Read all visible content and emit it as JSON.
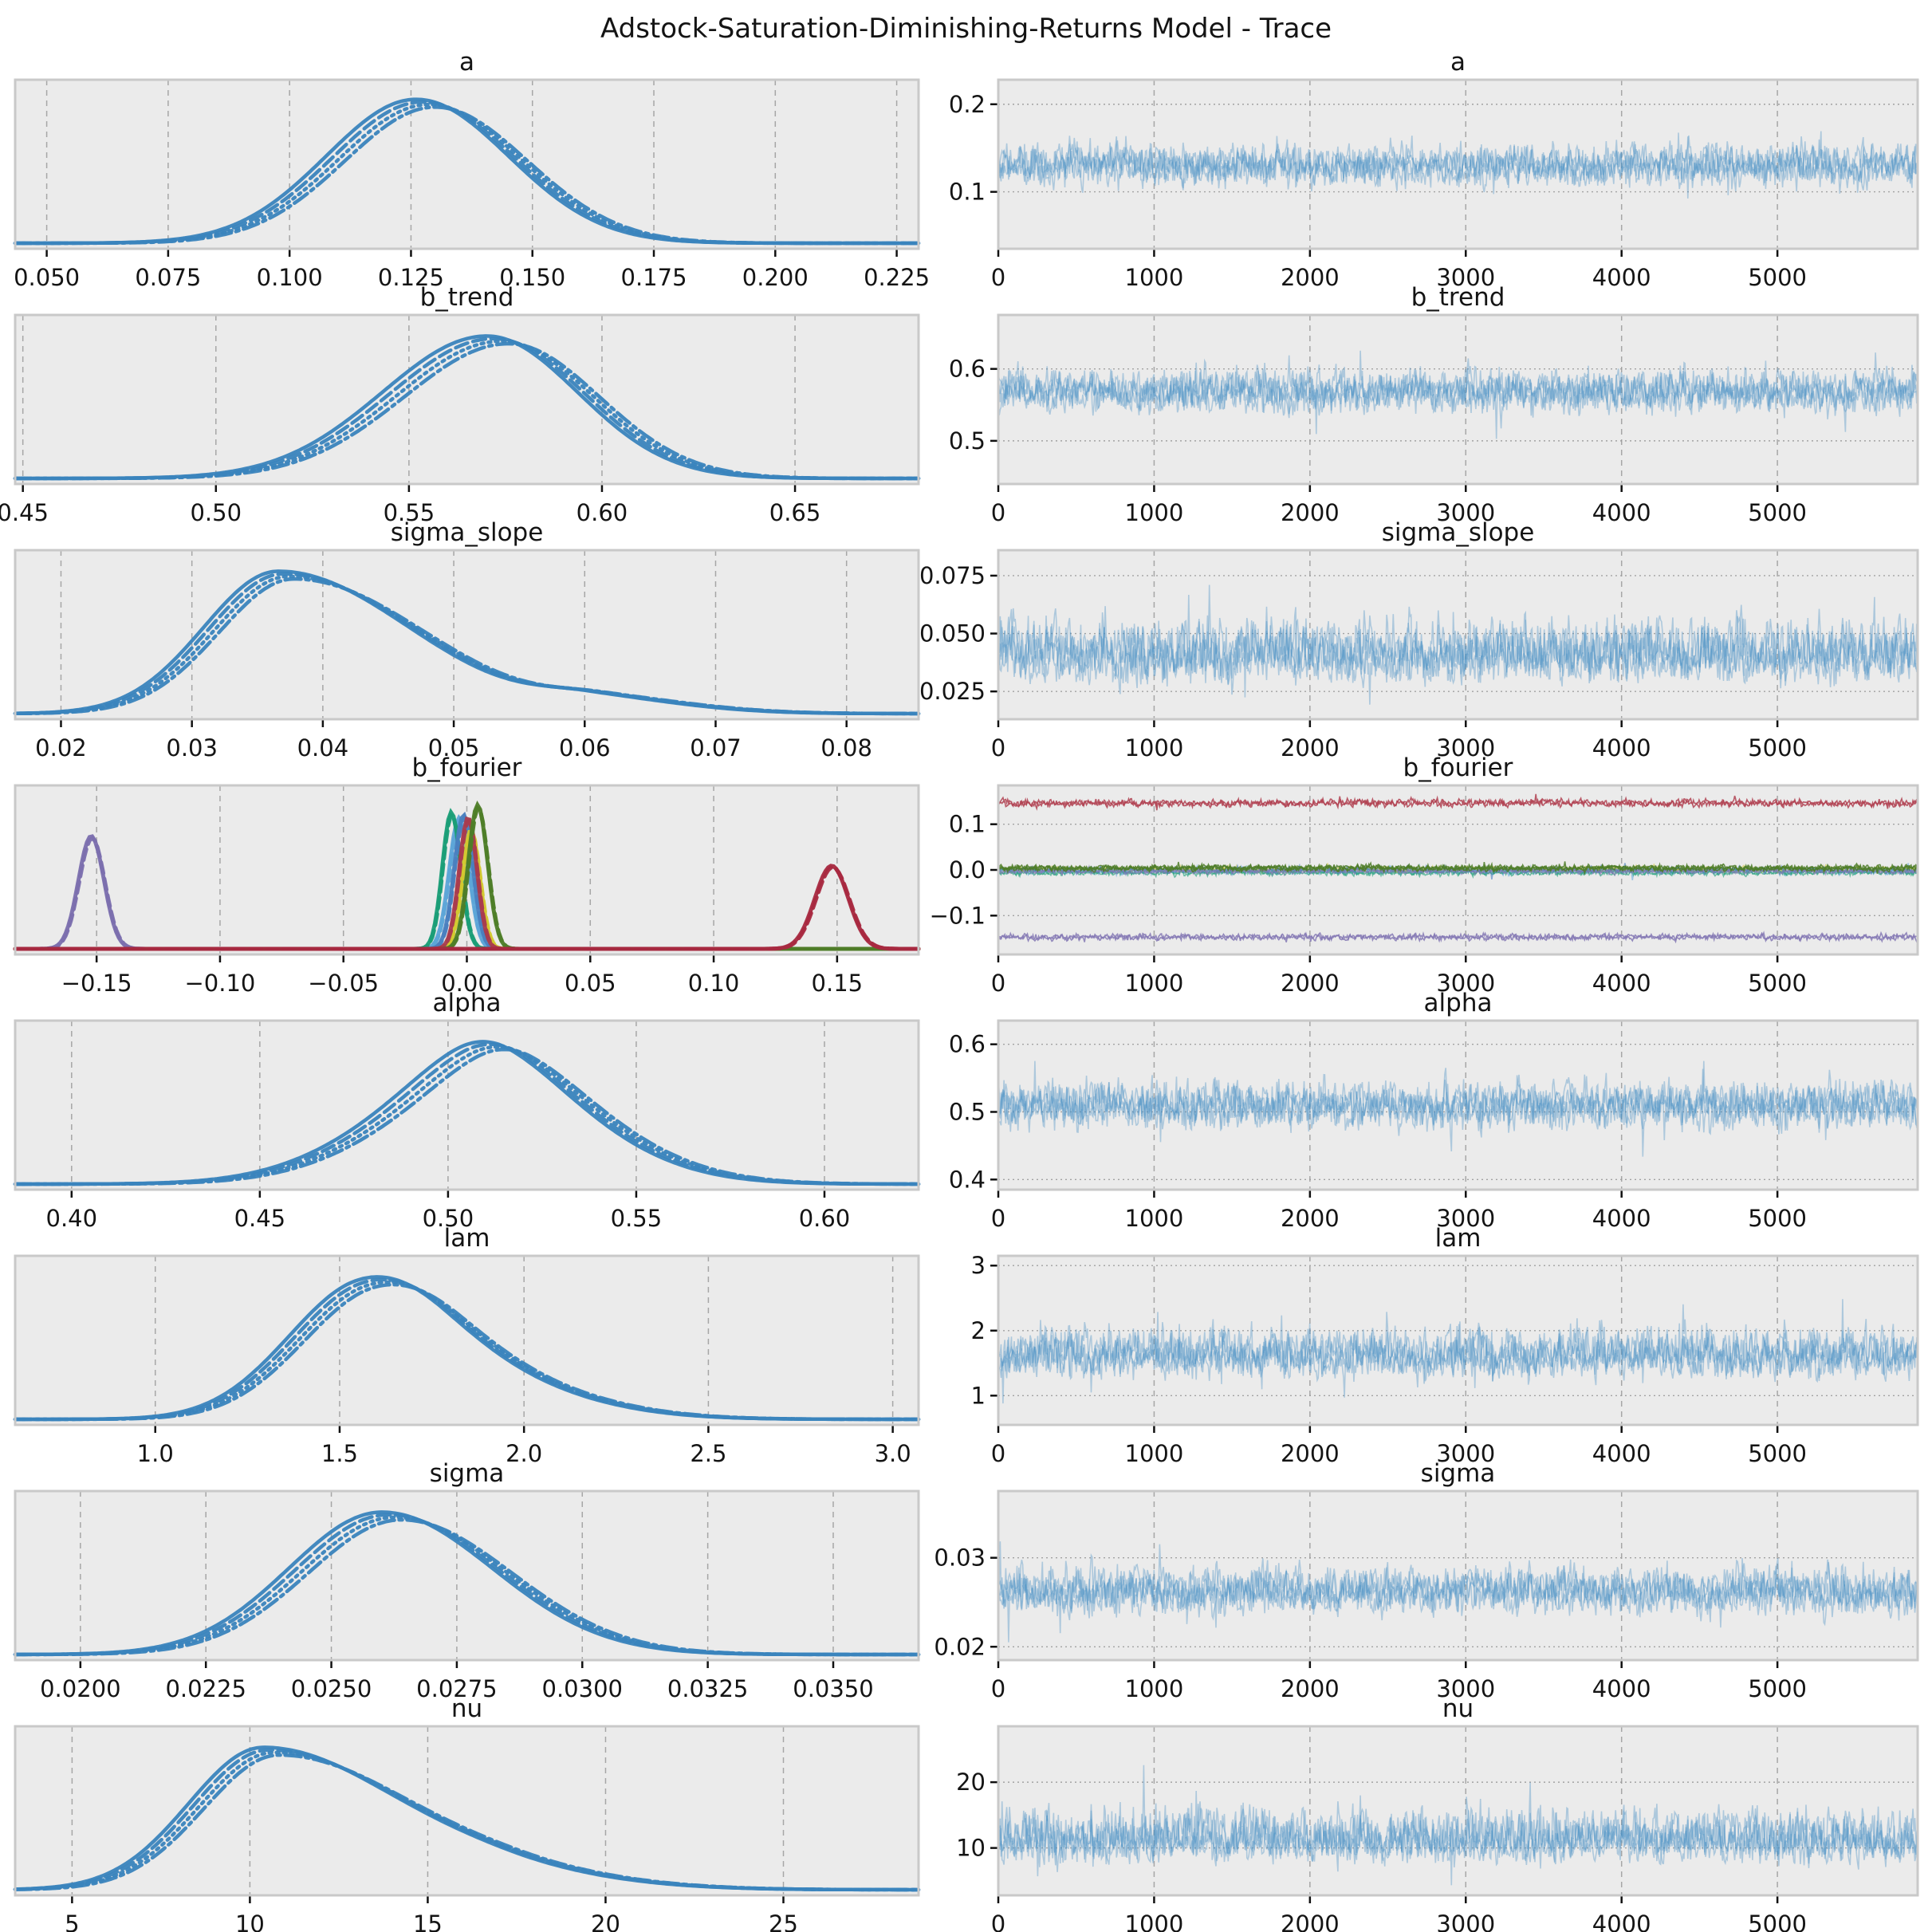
{
  "title": "Adstock-Saturation-Diminishing-Returns Model - Trace",
  "palette": {
    "chain_blue": "#3a84bd",
    "trace_blue": "#4a90c4",
    "background_axes": "#ebebeb",
    "frame": "#c9c9c9",
    "grid": "#9b9b9b",
    "tick_text": "#141414",
    "fourier_purple": "#7b6fae",
    "fourier_teal": "#1a9e77",
    "fourier_lightblue": "#5da5d8",
    "fourier_blue": "#4a7fbf",
    "fourier_crimson": "#a93c4e",
    "fourier_yellow": "#d3c92f",
    "fourier_olive": "#4e7d28",
    "fourier_darkcrimson": "#a82940"
  },
  "chart_data": {
    "type": "line",
    "description": "ArviZ-style MCMC trace plot grid: left column = posterior KDE per parameter (4 chains, linestyles solid/dashed/dotted/dashdot), right column = sampled values vs draw index (0..5900).",
    "trace_x": {
      "tick_labels": [
        "0",
        "1000",
        "2000",
        "3000",
        "4000",
        "5000"
      ],
      "tick_values": [
        0,
        1000,
        2000,
        3000,
        4000,
        5000
      ],
      "xmax": 5900
    },
    "rows": [
      {
        "param": "a",
        "kde": {
          "xlim": [
            0.0435,
            0.2295
          ],
          "tick_values": [
            0.05,
            0.075,
            0.1,
            0.125,
            0.15,
            0.175,
            0.2,
            0.225
          ],
          "tick_labels": [
            "0.050",
            "0.075",
            "0.100",
            "0.125",
            "0.150",
            "0.175",
            "0.200",
            "0.225"
          ],
          "components": [
            {
              "color": "#3a84bd",
              "chains": 4,
              "height": 0.97,
              "gauss": [
                {
                  "m": 0.128,
                  "sl": 0.0185,
                  "sr": 0.019,
                  "w": 1
                }
              ]
            }
          ]
        },
        "trace": {
          "ylim": [
            0.035,
            0.228
          ],
          "ytick_values": [
            0.1,
            0.2
          ],
          "ytick_labels": [
            "0.1",
            "0.2"
          ],
          "bands": [
            {
              "color": "#4a90c4",
              "chains": 4,
              "alpha": 0.38,
              "center": 0.13,
              "spread": 0.021,
              "skew": 0
            }
          ]
        }
      },
      {
        "param": "b_trend",
        "kde": {
          "xlim": [
            0.448,
            0.682
          ],
          "tick_values": [
            0.45,
            0.5,
            0.55,
            0.6,
            0.65
          ],
          "tick_labels": [
            "0.45",
            "0.50",
            "0.55",
            "0.60",
            "0.65"
          ],
          "components": [
            {
              "color": "#3a84bd",
              "chains": 4,
              "height": 0.96,
              "gauss": [
                {
                  "m": 0.573,
                  "sl": 0.027,
                  "sr": 0.0235,
                  "w": 1
                }
              ]
            }
          ]
        },
        "trace": {
          "ylim": [
            0.44,
            0.675
          ],
          "ytick_values": [
            0.5,
            0.6
          ],
          "ytick_labels": [
            "0.5",
            "0.6"
          ],
          "bands": [
            {
              "color": "#4a90c4",
              "chains": 4,
              "alpha": 0.38,
              "center": 0.569,
              "spread": 0.026,
              "skew": 0.05
            }
          ]
        }
      },
      {
        "param": "sigma_slope",
        "kde": {
          "xlim": [
            0.0165,
            0.0855
          ],
          "tick_values": [
            0.02,
            0.03,
            0.04,
            0.05,
            0.06,
            0.07,
            0.08
          ],
          "tick_labels": [
            "0.02",
            "0.03",
            "0.04",
            "0.05",
            "0.06",
            "0.07",
            "0.08"
          ],
          "components": [
            {
              "color": "#3a84bd",
              "chains": 4,
              "height": 0.96,
              "gauss": [
                {
                  "m": 0.0372,
                  "sl": 0.0057,
                  "sr": 0.01,
                  "w": 1
                },
                {
                  "m": 0.061,
                  "sl": 0.004,
                  "sr": 0.007,
                  "w": 0.1
                }
              ]
            }
          ]
        },
        "trace": {
          "ylim": [
            0.013,
            0.086
          ],
          "ytick_values": [
            0.025,
            0.05,
            0.075
          ],
          "ytick_labels": [
            "0.025",
            "0.050",
            "0.075"
          ],
          "bands": [
            {
              "color": "#4a90c4",
              "chains": 4,
              "alpha": 0.38,
              "center": 0.041,
              "spread": 0.0105,
              "skew": 0.35
            }
          ]
        }
      },
      {
        "param": "b_fourier",
        "kde": {
          "xlim": [
            -0.183,
            0.183
          ],
          "tick_values": [
            -0.15,
            -0.1,
            -0.05,
            0.0,
            0.05,
            0.1,
            0.15
          ],
          "tick_labels": [
            "−0.15",
            "−0.10",
            "−0.05",
            "0.00",
            "0.05",
            "0.10",
            "0.15"
          ],
          "components": [
            {
              "color": "#7b6fae",
              "chains": 2,
              "height": 0.76,
              "gauss": [
                {
                  "m": -0.152,
                  "sl": 0.0052,
                  "sr": 0.0052,
                  "w": 1
                }
              ]
            },
            {
              "color": "#5da5d8",
              "chains": 2,
              "height": 0.88,
              "gauss": [
                {
                  "m": -0.003,
                  "sl": 0.004,
                  "sr": 0.004,
                  "w": 1
                }
              ]
            },
            {
              "color": "#1a9e77",
              "chains": 2,
              "height": 0.92,
              "gauss": [
                {
                  "m": -0.0062,
                  "sl": 0.0036,
                  "sr": 0.0038,
                  "w": 1
                }
              ]
            },
            {
              "color": "#4a7fbf",
              "chains": 2,
              "height": 0.9,
              "gauss": [
                {
                  "m": -0.0012,
                  "sl": 0.0038,
                  "sr": 0.0038,
                  "w": 1
                }
              ]
            },
            {
              "color": "#d3c92f",
              "chains": 2,
              "height": 0.8,
              "gauss": [
                {
                  "m": 0.0018,
                  "sl": 0.0036,
                  "sr": 0.0036,
                  "w": 1
                }
              ]
            },
            {
              "color": "#a93c4e",
              "chains": 2,
              "height": 0.88,
              "gauss": [
                {
                  "m": 0.0006,
                  "sl": 0.0036,
                  "sr": 0.0036,
                  "w": 1
                }
              ]
            },
            {
              "color": "#4e7d28",
              "chains": 2,
              "height": 0.97,
              "gauss": [
                {
                  "m": 0.0045,
                  "sl": 0.0038,
                  "sr": 0.004,
                  "w": 1
                }
              ]
            },
            {
              "color": "#a82940",
              "chains": 2,
              "height": 0.56,
              "gauss": [
                {
                  "m": 0.148,
                  "sl": 0.0068,
                  "sr": 0.0068,
                  "w": 1
                }
              ]
            }
          ]
        },
        "trace": {
          "ylim": [
            -0.185,
            0.185
          ],
          "ytick_values": [
            -0.1,
            0.0,
            0.1
          ],
          "ytick_labels": [
            "−0.1",
            "0.0",
            "0.1"
          ],
          "bands": [
            {
              "color": "#b04050",
              "chains": 2,
              "alpha": 0.85,
              "center": 0.146,
              "spread": 0.0075,
              "skew": 0
            },
            {
              "color": "#5da5d8",
              "chains": 2,
              "alpha": 0.55,
              "center": -0.002,
              "spread": 0.007,
              "skew": 0
            },
            {
              "color": "#1a9e77",
              "chains": 2,
              "alpha": 0.6,
              "center": -0.006,
              "spread": 0.006,
              "skew": 0
            },
            {
              "color": "#d3c92f",
              "chains": 2,
              "alpha": 0.5,
              "center": 0.002,
              "spread": 0.005,
              "skew": 0
            },
            {
              "color": "#4a7fbf",
              "chains": 2,
              "alpha": 0.6,
              "center": 0.0,
              "spread": 0.006,
              "skew": 0
            },
            {
              "color": "#8478b4",
              "chains": 2,
              "alpha": 0.6,
              "center": -0.003,
              "spread": 0.005,
              "skew": 0
            },
            {
              "color": "#4e7d28",
              "chains": 3,
              "alpha": 0.85,
              "center": 0.004,
              "spread": 0.006,
              "skew": 0
            },
            {
              "color": "#8478b4",
              "chains": 2,
              "alpha": 0.85,
              "center": -0.147,
              "spread": 0.0065,
              "skew": 0
            }
          ]
        }
      },
      {
        "param": "alpha",
        "kde": {
          "xlim": [
            0.385,
            0.625
          ],
          "tick_values": [
            0.4,
            0.45,
            0.5,
            0.55,
            0.6
          ],
          "tick_labels": [
            "0.40",
            "0.45",
            "0.50",
            "0.55",
            "0.60"
          ],
          "components": [
            {
              "color": "#3a84bd",
              "chains": 4,
              "height": 0.96,
              "gauss": [
                {
                  "m": 0.504,
                  "sl": 0.027,
                  "sr": 0.021,
                  "w": 0.92
                },
                {
                  "m": 0.519,
                  "sl": 0.019,
                  "sr": 0.027,
                  "w": 0.88
                }
              ]
            }
          ]
        },
        "trace": {
          "ylim": [
            0.385,
            0.635
          ],
          "ytick_values": [
            0.4,
            0.5,
            0.6
          ],
          "ytick_labels": [
            "0.4",
            "0.5",
            "0.6"
          ],
          "bands": [
            {
              "color": "#4a90c4",
              "chains": 4,
              "alpha": 0.38,
              "center": 0.51,
              "spread": 0.03,
              "skew": 0.05
            }
          ]
        }
      },
      {
        "param": "lam",
        "kde": {
          "xlim": [
            0.62,
            3.07
          ],
          "tick_values": [
            1.0,
            1.5,
            2.0,
            2.5,
            3.0
          ],
          "tick_labels": [
            "1.0",
            "1.5",
            "2.0",
            "2.5",
            "3.0"
          ],
          "components": [
            {
              "color": "#3a84bd",
              "chains": 4,
              "height": 0.96,
              "gauss": [
                {
                  "m": 1.56,
                  "sl": 0.2,
                  "sr": 0.22,
                  "w": 1
                },
                {
                  "m": 1.8,
                  "sl": 0.2,
                  "sr": 0.3,
                  "w": 0.42
                }
              ]
            }
          ]
        },
        "trace": {
          "ylim": [
            0.55,
            3.15
          ],
          "ytick_values": [
            1,
            2,
            3
          ],
          "ytick_labels": [
            "1",
            "2",
            "3"
          ],
          "bands": [
            {
              "color": "#4a90c4",
              "chains": 4,
              "alpha": 0.38,
              "center": 1.62,
              "spread": 0.29,
              "skew": 0.35
            }
          ]
        }
      },
      {
        "param": "sigma",
        "kde": {
          "xlim": [
            0.0187,
            0.0367
          ],
          "tick_values": [
            0.02,
            0.0225,
            0.025,
            0.0275,
            0.03,
            0.0325,
            0.035
          ],
          "tick_labels": [
            "0.0200",
            "0.0225",
            "0.0250",
            "0.0275",
            "0.0300",
            "0.0325",
            "0.0350"
          ],
          "components": [
            {
              "color": "#3a84bd",
              "chains": 4,
              "height": 0.96,
              "gauss": [
                {
                  "m": 0.0262,
                  "sl": 0.00185,
                  "sr": 0.0022,
                  "w": 1
                }
              ]
            }
          ]
        },
        "trace": {
          "ylim": [
            0.0185,
            0.0375
          ],
          "ytick_values": [
            0.02,
            0.03
          ],
          "ytick_labels": [
            "0.02",
            "0.03"
          ],
          "bands": [
            {
              "color": "#4a90c4",
              "chains": 4,
              "alpha": 0.38,
              "center": 0.0262,
              "spread": 0.0022,
              "skew": 0.15
            }
          ]
        }
      },
      {
        "param": "nu",
        "kde": {
          "xlim": [
            3.4,
            28.8
          ],
          "tick_values": [
            5,
            10,
            15,
            20,
            25
          ],
          "tick_labels": [
            "5",
            "10",
            "15",
            "20",
            "25"
          ],
          "components": [
            {
              "color": "#3a84bd",
              "chains": 4,
              "height": 0.96,
              "gauss": [
                {
                  "m": 10.6,
                  "sl": 2.1,
                  "sr": 3.9,
                  "w": 1
                },
                {
                  "m": 17.5,
                  "sl": 2.0,
                  "sr": 3.2,
                  "w": 0.07
                }
              ]
            }
          ]
        },
        "trace": {
          "ylim": [
            2.8,
            28.5
          ],
          "ytick_values": [
            10,
            20
          ],
          "ytick_labels": [
            "10",
            "20"
          ],
          "bands": [
            {
              "color": "#4a90c4",
              "chains": 4,
              "alpha": 0.38,
              "center": 11.2,
              "spread": 3.0,
              "skew": 0.5
            }
          ]
        }
      }
    ]
  }
}
